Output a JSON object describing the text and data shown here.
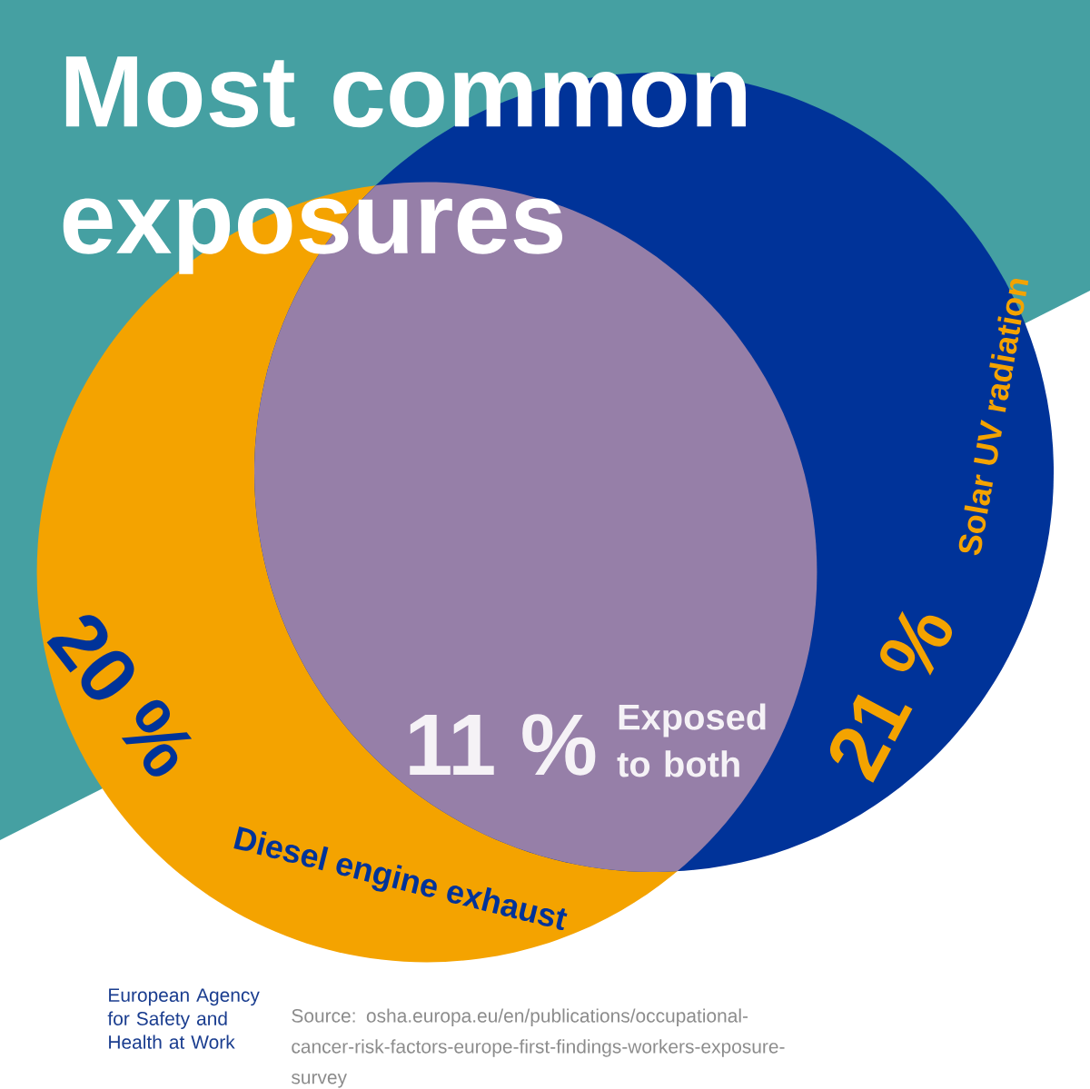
{
  "chart_data": {
    "type": "other",
    "title": "Most common exposures",
    "categories": [
      "Diesel engine exhaust",
      "Solar UV radiation",
      "Exposed to both"
    ],
    "values": [
      20,
      21,
      11
    ],
    "value_labels": [
      "20 %",
      "21 %",
      "11 %"
    ],
    "colors": [
      "#f4a300",
      "#003399",
      "#967fa8"
    ],
    "annotations": [
      "European Agency for Safety and Health at Work",
      "Source: osha.europa.eu/en/publications/occupational-cancer-risk-factors-europe-first-findings-workers-exposure-survey"
    ]
  }
}
